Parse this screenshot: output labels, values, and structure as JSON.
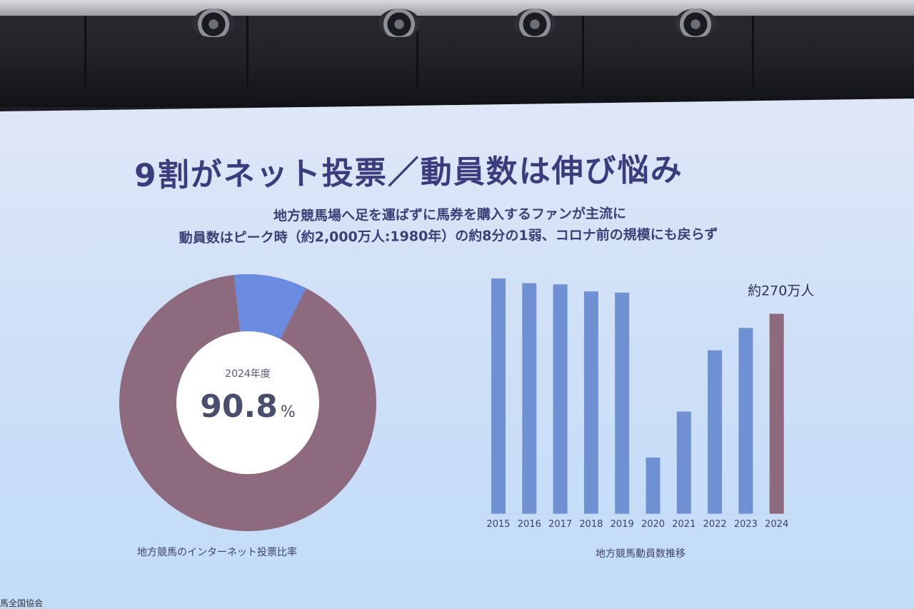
{
  "slide": {
    "title": "9割がネット投票／動員数は伸び悩み",
    "subtitle_line1": "地方競馬場へ足を運ばずに馬券を購入するファンが主流に",
    "subtitle_line2": "動員数はピーク時（約2,000万人:1980年）の約8分の1弱、コロナ前の規模にも戻らず",
    "footer": "馬全国協会"
  },
  "colors": {
    "primary": "#8e6a7e",
    "secondary": "#6b8be0",
    "bar_blue": "#7090d4",
    "bar_highlight": "#8e6a7e",
    "text": "#3b3c7e"
  },
  "chart_data": [
    {
      "type": "pie",
      "variant": "donut",
      "caption": "地方競馬のインターネット投票比率",
      "center_label": "2024年度",
      "center_value": "90.8",
      "center_unit": "%",
      "slices": [
        {
          "value": 90.8,
          "color": "#8e6a7e"
        },
        {
          "value": 9.2,
          "color": "#6b8be0"
        }
      ]
    },
    {
      "type": "bar",
      "caption": "地方競馬動員数推移",
      "categories": [
        "2015",
        "2016",
        "2017",
        "2018",
        "2019",
        "2020",
        "2021",
        "2022",
        "2023",
        "2024"
      ],
      "values": [
        100,
        98,
        97.5,
        94.5,
        94,
        24,
        43.5,
        69.5,
        79,
        85
      ],
      "highlight_index": 9,
      "annotation": "約270万人",
      "ylim": [
        0,
        100
      ]
    }
  ]
}
